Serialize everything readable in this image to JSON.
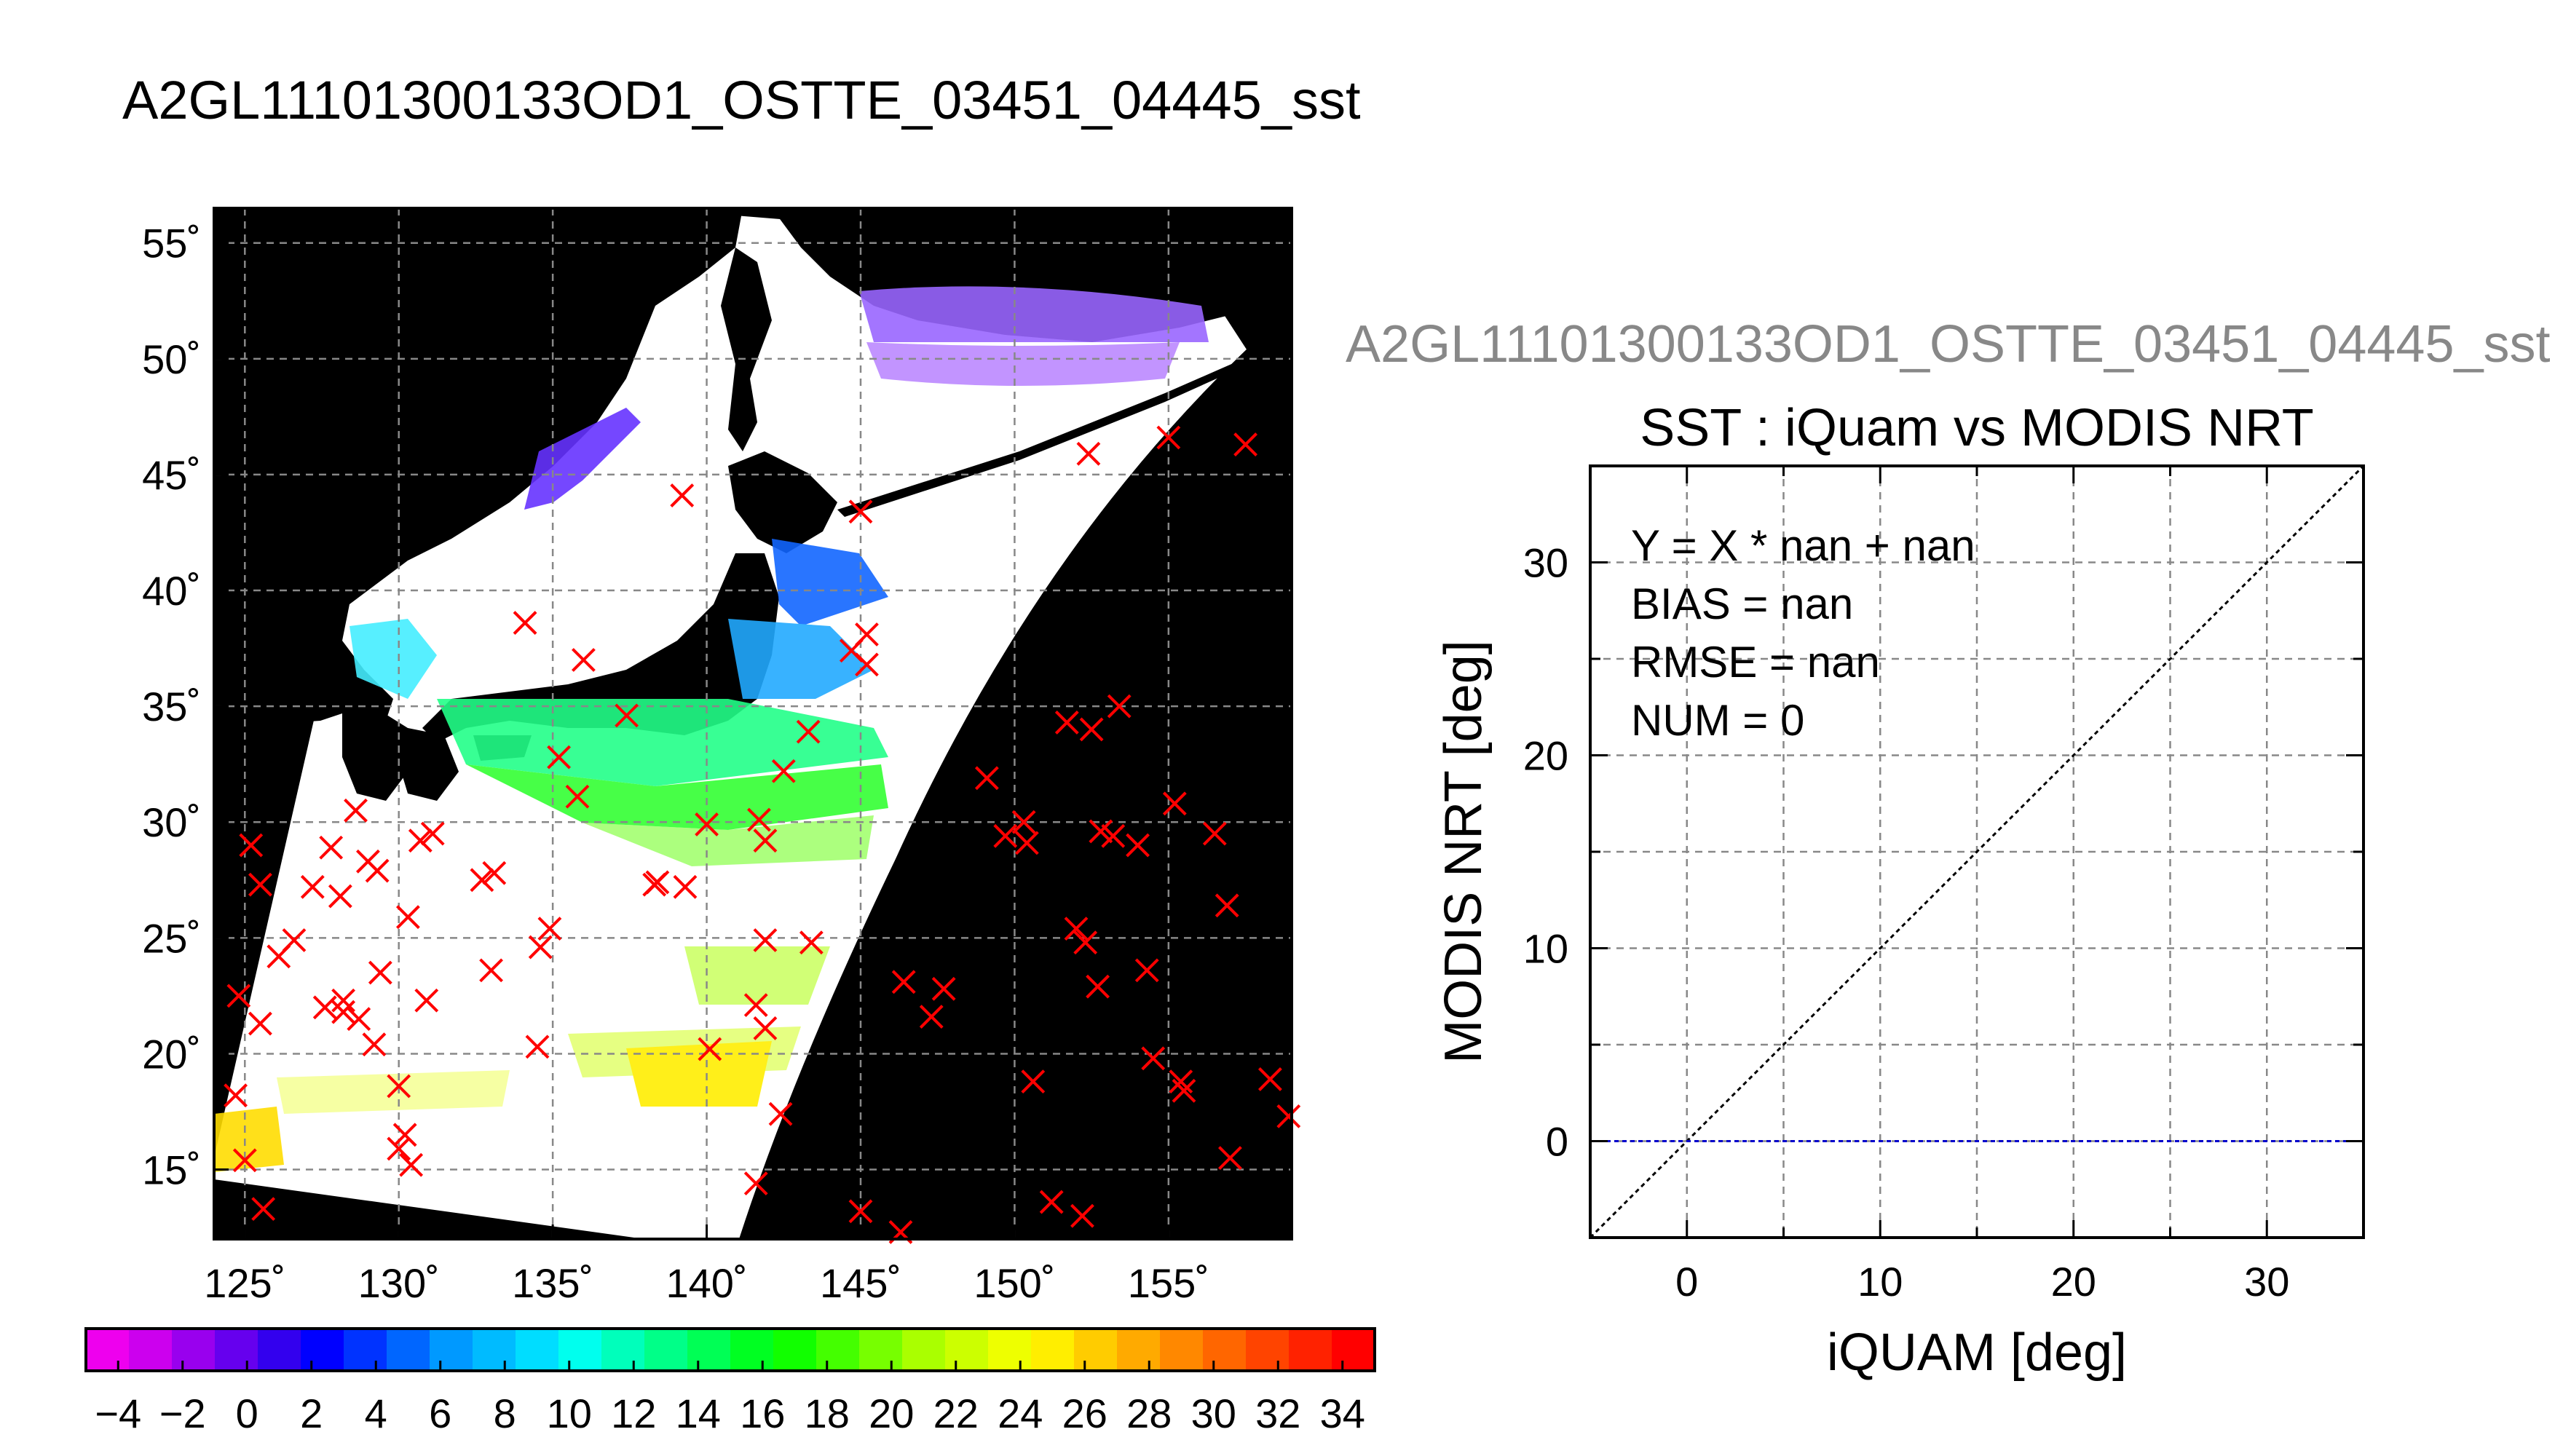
{
  "figure": {
    "title": "A2GL11101300133OD1_OSTTE_03451_04445_sst"
  },
  "chart_data": [
    {
      "type": "map",
      "name": "SST swath map",
      "projection": "longitude-latitude",
      "lon_range": [
        124,
        159
      ],
      "lat_range": [
        12,
        56.5
      ],
      "lon_ticks": [
        125,
        130,
        135,
        140,
        145,
        150,
        155
      ],
      "lat_ticks": [
        15,
        20,
        25,
        30,
        35,
        40,
        45,
        50,
        55
      ],
      "lon_tick_labels": [
        "125˚",
        "130˚",
        "135˚",
        "140˚",
        "145˚",
        "150˚",
        "155˚"
      ],
      "lat_tick_labels": [
        "15˚",
        "20˚",
        "25˚",
        "30˚",
        "35˚",
        "40˚",
        "45˚",
        "50˚",
        "55˚"
      ],
      "grid": "dashed",
      "background_color": "#000000",
      "swath_color": "#ffffff",
      "marker": "x",
      "marker_color": "#ff0000",
      "iquam_points": [
        [
          125.2,
          29.0
        ],
        [
          125.5,
          27.3
        ],
        [
          124.8,
          22.5
        ],
        [
          125.5,
          21.3
        ],
        [
          126.1,
          24.2
        ],
        [
          126.6,
          24.9
        ],
        [
          127.2,
          27.2
        ],
        [
          127.8,
          28.9
        ],
        [
          128.1,
          26.8
        ],
        [
          128.6,
          30.5
        ],
        [
          129.0,
          28.3
        ],
        [
          129.3,
          27.9
        ],
        [
          129.4,
          23.5
        ],
        [
          130.3,
          25.9
        ],
        [
          130.7,
          29.2
        ],
        [
          131.1,
          29.5
        ],
        [
          130.9,
          22.3
        ],
        [
          127.6,
          22.0
        ],
        [
          128.2,
          22.3
        ],
        [
          128.7,
          21.5
        ],
        [
          129.2,
          20.4
        ],
        [
          128.2,
          21.8
        ],
        [
          130.0,
          18.6
        ],
        [
          130.0,
          15.9
        ],
        [
          130.2,
          16.5
        ],
        [
          130.4,
          15.2
        ],
        [
          125.6,
          13.3
        ],
        [
          125.0,
          15.4
        ],
        [
          124.7,
          18.2
        ],
        [
          132.7,
          27.5
        ],
        [
          133.1,
          27.8
        ],
        [
          133.0,
          23.6
        ],
        [
          134.5,
          20.3
        ],
        [
          134.9,
          25.4
        ],
        [
          134.6,
          24.6
        ],
        [
          135.2,
          32.8
        ],
        [
          135.8,
          31.1
        ],
        [
          136.0,
          37.0
        ],
        [
          134.1,
          38.6
        ],
        [
          137.4,
          34.6
        ],
        [
          138.3,
          27.3
        ],
        [
          138.4,
          27.4
        ],
        [
          139.2,
          44.1
        ],
        [
          139.3,
          27.2
        ],
        [
          140.0,
          29.9
        ],
        [
          140.1,
          20.2
        ],
        [
          141.7,
          30.1
        ],
        [
          141.9,
          29.2
        ],
        [
          141.9,
          24.9
        ],
        [
          141.6,
          22.1
        ],
        [
          141.9,
          21.1
        ],
        [
          142.4,
          17.4
        ],
        [
          141.6,
          14.4
        ],
        [
          142.5,
          32.2
        ],
        [
          143.3,
          33.9
        ],
        [
          143.4,
          24.8
        ],
        [
          144.7,
          37.4
        ],
        [
          145.2,
          38.1
        ],
        [
          145.2,
          36.8
        ],
        [
          145.0,
          43.4
        ],
        [
          146.4,
          23.1
        ],
        [
          147.3,
          21.6
        ],
        [
          147.7,
          22.8
        ],
        [
          149.1,
          31.9
        ],
        [
          149.7,
          29.4
        ],
        [
          150.4,
          29.1
        ],
        [
          150.3,
          30.0
        ],
        [
          150.6,
          18.8
        ],
        [
          151.7,
          34.3
        ],
        [
          152.0,
          25.4
        ],
        [
          152.3,
          24.8
        ],
        [
          152.4,
          45.9
        ],
        [
          152.5,
          34.0
        ],
        [
          152.7,
          22.9
        ],
        [
          152.8,
          29.6
        ],
        [
          153.2,
          29.4
        ],
        [
          153.4,
          35.0
        ],
        [
          154.0,
          29.0
        ],
        [
          154.3,
          23.6
        ],
        [
          154.5,
          19.8
        ],
        [
          155.2,
          30.8
        ],
        [
          155.4,
          18.8
        ],
        [
          155.5,
          18.4
        ],
        [
          156.5,
          29.5
        ],
        [
          156.9,
          26.4
        ],
        [
          157.0,
          15.5
        ],
        [
          157.5,
          46.3
        ],
        [
          158.3,
          18.9
        ],
        [
          158.9,
          17.3
        ],
        [
          151.2,
          13.6
        ],
        [
          152.2,
          13.0
        ],
        [
          145.0,
          13.2
        ],
        [
          146.3,
          12.3
        ],
        [
          155.0,
          46.6
        ]
      ]
    },
    {
      "type": "colorbar",
      "ticks": [
        -4,
        -2,
        0,
        2,
        4,
        6,
        8,
        10,
        12,
        14,
        16,
        18,
        20,
        22,
        24,
        26,
        28,
        30,
        32,
        34
      ],
      "tick_labels": [
        "−4",
        "−2",
        "0",
        "2",
        "4",
        "6",
        "8",
        "10",
        "12",
        "14",
        "16",
        "18",
        "20",
        "22",
        "24",
        "26",
        "28",
        "30",
        "32",
        "34"
      ],
      "range": [
        -5,
        35
      ],
      "colors": [
        "#ee00ee",
        "#cc00ee",
        "#9900ee",
        "#6600ee",
        "#3300ee",
        "#0000ff",
        "#0033ff",
        "#0066ff",
        "#0099ff",
        "#00bbff",
        "#00ddff",
        "#00ffee",
        "#00ffbb",
        "#00ff88",
        "#00ff55",
        "#00ff22",
        "#11ff00",
        "#44ff00",
        "#77ff00",
        "#aaff00",
        "#ccff00",
        "#eeff00",
        "#ffee00",
        "#ffcc00",
        "#ffaa00",
        "#ff8800",
        "#ff6600",
        "#ff4400",
        "#ff2200",
        "#ff0000"
      ]
    },
    {
      "type": "scatter",
      "subtitle": "A2GL11101300133OD1_OSTTE_03451_04445_sst",
      "title": "SST : iQuam vs MODIS NRT",
      "xlabel": "iQUAM [deg]",
      "ylabel": "MODIS NRT [deg]",
      "xlim": [
        -5,
        35
      ],
      "ylim": [
        -5,
        35
      ],
      "xticks": [
        0,
        10,
        20,
        30
      ],
      "yticks": [
        0,
        10,
        20,
        30
      ],
      "grid": "dashed",
      "identity_line": true,
      "fit_line": {
        "y": 0,
        "color": "#0000cc"
      },
      "points": [],
      "stats": [
        "Y = X * nan + nan",
        "BIAS = nan",
        "RMSE = nan",
        "NUM = 0"
      ]
    }
  ]
}
